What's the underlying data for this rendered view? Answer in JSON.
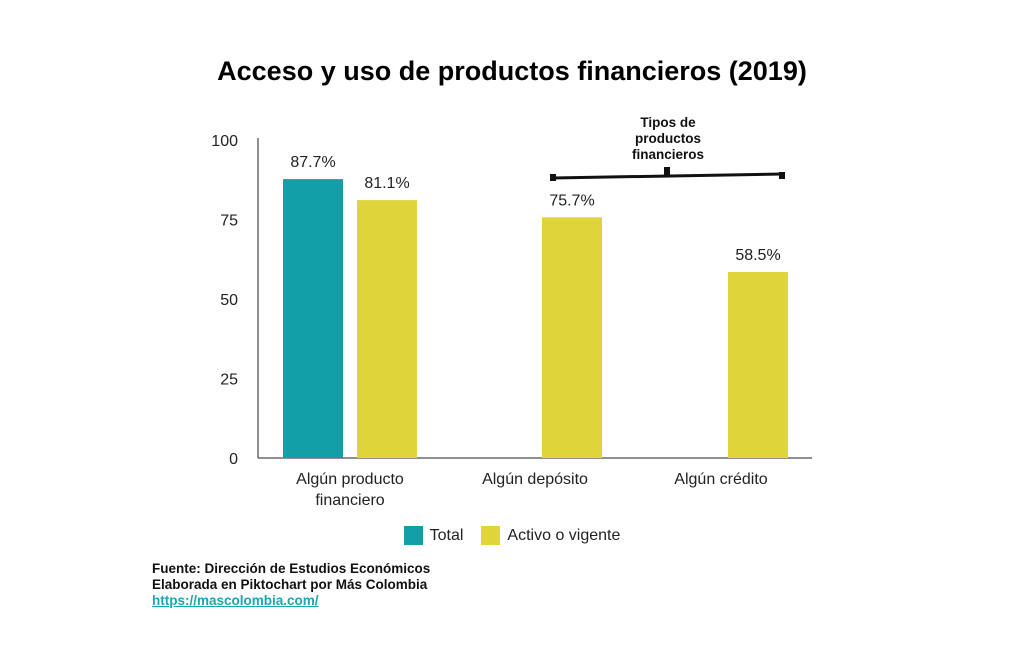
{
  "chart_data": {
    "type": "bar",
    "title": "Acceso y uso de productos financieros (2019)",
    "categories": [
      "Algún producto financiero",
      "Algún depósito",
      "Algún crédito"
    ],
    "category_lines": [
      [
        "Algún producto",
        "financiero"
      ],
      [
        "Algún depósito"
      ],
      [
        "Algún crédito"
      ]
    ],
    "series": [
      {
        "name": "Total",
        "color": "#129fa5",
        "values": [
          87.7,
          null,
          null
        ],
        "labels": [
          "87.7%",
          null,
          null
        ]
      },
      {
        "name": "Activo o vigente",
        "color": "#e0d43b",
        "values": [
          81.1,
          75.7,
          58.5
        ],
        "labels": [
          "81.1%",
          "75.7%",
          "58.5%"
        ]
      }
    ],
    "ylim": [
      0,
      100
    ],
    "yticks": [
      "0",
      "25",
      "50",
      "75",
      "100"
    ],
    "grid": false,
    "legend": "bottom",
    "annotation": {
      "lines": [
        "Tipos de",
        "productos",
        "financieros"
      ]
    }
  },
  "footer": {
    "source": "Fuente: Dirección de Estudios Económicos",
    "credit": "Elaborada en Piktochart por Más Colombia",
    "link": "https://mascolombia.com/"
  }
}
